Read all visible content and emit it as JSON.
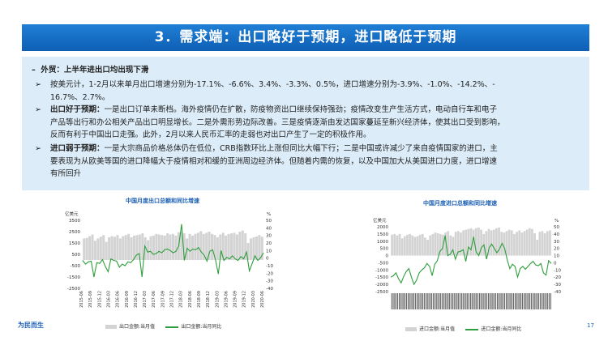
{
  "slide": {
    "title": "3．需求端：出口略好于预期，进口略低于预期",
    "page_number": "17",
    "footer_logo": "为民而生"
  },
  "text": {
    "heading_bullet": "–",
    "heading": "外贸：上半年进出口均出现下滑",
    "b1_marker": "➢",
    "b1_line1": "按美元计，1-2月以来单月出口增速分别为-17.1%、-6.6%、3.4%、-3.3%、0.5%，进口增速分别为-3.9%、-1.0%、-14.2%、-",
    "b1_line2": "16.7%、2.7%。",
    "b2_marker": "➢",
    "b2_lead": "出口好于预期：",
    "b2_line1": "一是出口订单未断档。海外疫情仍在扩散，防疫物资出口继续保持强劲；疫情改变生产生活方式，电动自行车和电子",
    "b2_line2": "产品等出行和办公相关产品出口明显增长。二是外需形势边际改善。三是疫情逐渐由发达国家蔓延至新兴经济体，使其出口受到影响，",
    "b2_line3": "反而有利于中国出口走强。此外，2月以来人民币汇率的走弱也对出口产生了一定的积极作用。",
    "b3_marker": "➢",
    "b3_lead": "进口弱于预期：",
    "b3_line1": "一是大宗商品价格总体仍在低位，CRB指数环比上涨但同比大幅下行；二是中国或许减少了来自疫情国家的进口，主",
    "b3_line2": "要表现为从欧美等国的进口降幅大于疫情相对和缓的亚洲周边经济体。但随着内需的恢复，以及中国加大从美国进口力度，进口增速",
    "b3_line3": "有所回升"
  },
  "chart_data": [
    {
      "type": "bar+line",
      "title": "中国月度出口总额和同比增速",
      "left_axis_unit": "亿美元",
      "right_axis_unit": "%",
      "ylim_left": [
        -2500,
        3500
      ],
      "ylim_right": [
        -40,
        50
      ],
      "left_ticks": [
        "3500",
        "2500",
        "1500",
        "500",
        "-500",
        "-1500",
        "-2500"
      ],
      "right_ticks": [
        "50",
        "40",
        "30",
        "20",
        "10",
        "0",
        "-10",
        "-20",
        "-30",
        "-40"
      ],
      "x_labels": [
        "2015-06",
        "2015-09",
        "2015-12",
        "2016-03",
        "2016-06",
        "2016-09",
        "2016-12",
        "2017-03",
        "2017-06",
        "2017-09",
        "2017-12",
        "2018-03",
        "2018-06",
        "2018-09",
        "2018-12",
        "2019-03",
        "2019-06",
        "2019-09",
        "2019-12",
        "2020-03",
        "2020-06"
      ],
      "series": [
        {
          "name": "出口金额:当月值",
          "kind": "bar",
          "values": [
            1900,
            1950,
            2100,
            2250,
            1700,
            1900,
            2050,
            2200,
            1600,
            2000,
            2100,
            2050,
            2200,
            1900,
            2100,
            2200,
            2300,
            2000,
            2150,
            2200,
            2250,
            2350,
            2000,
            1750,
            2100,
            2150,
            2300,
            2250,
            2200,
            2150,
            2350,
            2250,
            2300,
            2150,
            2450,
            2500,
            2350,
            1900,
            2300,
            2150,
            2300,
            2400,
            2550,
            2300,
            2400,
            2500,
            2300,
            2200,
            2000,
            2250,
            2400,
            2150,
            2300,
            2350,
            2400,
            2250,
            2500,
            2600,
            2350,
            1500,
            1900,
            2000,
            2070,
            2200,
            2050
          ]
        },
        {
          "name": "出口金额:当月同比",
          "kind": "line",
          "values": [
            -3,
            -8,
            -5,
            -4,
            -25,
            -6,
            -7,
            -2,
            -11,
            -18,
            -1,
            -3,
            -4,
            -12,
            -8,
            -10,
            -5,
            -6,
            -2,
            4,
            6,
            -25,
            16,
            8,
            9,
            5,
            6,
            9,
            7,
            11,
            12,
            10,
            7,
            9,
            16,
            45,
            -3,
            13,
            9,
            12,
            11,
            14,
            8,
            4,
            -4,
            9,
            11,
            -2,
            -21,
            10,
            -3,
            1,
            -1,
            3,
            -1,
            -3,
            2,
            -1,
            8,
            -17,
            -7,
            3,
            -3,
            0.5,
            7
          ]
        }
      ]
    },
    {
      "type": "bar+line",
      "title": "中国月度进口总额和同比增速",
      "left_axis_unit": "亿美元",
      "right_axis_unit": "%",
      "ylim_left": [
        -2500,
        2000
      ],
      "ylim_right": [
        -40,
        50
      ],
      "left_ticks": [
        "2000",
        "1500",
        "1000",
        "500",
        "0",
        "-500",
        "-1000",
        "-1500",
        "-2000",
        "-2500"
      ],
      "right_ticks": [
        "50",
        "40",
        "30",
        "20",
        "10",
        "0",
        "-10",
        "-20",
        "-30",
        "-40"
      ],
      "series": [
        {
          "name": "进口金额:当月值",
          "kind": "bar",
          "values": [
            1450,
            1500,
            1400,
            1500,
            1200,
            1350,
            1450,
            1500,
            1400,
            1300,
            1350,
            1450,
            1500,
            1250,
            1100,
            1400,
            1500,
            1600,
            1550,
            1500,
            1450,
            1600,
            1700,
            1400,
            1300,
            1650,
            1700,
            1600,
            1750,
            1800,
            1850,
            1900,
            1800,
            1900,
            1950,
            1800,
            1500,
            1700,
            1850,
            1750,
            1800,
            1900,
            1950,
            1650,
            1600,
            1700,
            1800,
            1750,
            1500,
            1650,
            1750,
            1600,
            1700,
            1800,
            1900,
            1850,
            1550,
            1100,
            1650,
            1700,
            1550,
            1700,
            1750
          ]
        },
        {
          "name": "进口金额:当月同比",
          "kind": "line",
          "values": [
            -20,
            -18,
            -14,
            -22,
            -28,
            -19,
            -12,
            -8,
            -20,
            -30,
            -24,
            -14,
            -10,
            -7,
            -1,
            -5,
            -18,
            -2,
            3,
            16,
            20,
            38,
            10,
            12,
            18,
            5,
            15,
            16,
            18,
            2,
            22,
            18,
            36,
            15,
            10,
            21,
            25,
            5,
            21,
            26,
            20,
            14,
            19,
            27,
            20,
            4,
            -8,
            -2,
            -5,
            -20,
            -8,
            -5,
            -9,
            -5,
            -1,
            2,
            -3,
            -4,
            -1,
            -14,
            -17,
            3,
            -1
          ]
        }
      ]
    }
  ]
}
